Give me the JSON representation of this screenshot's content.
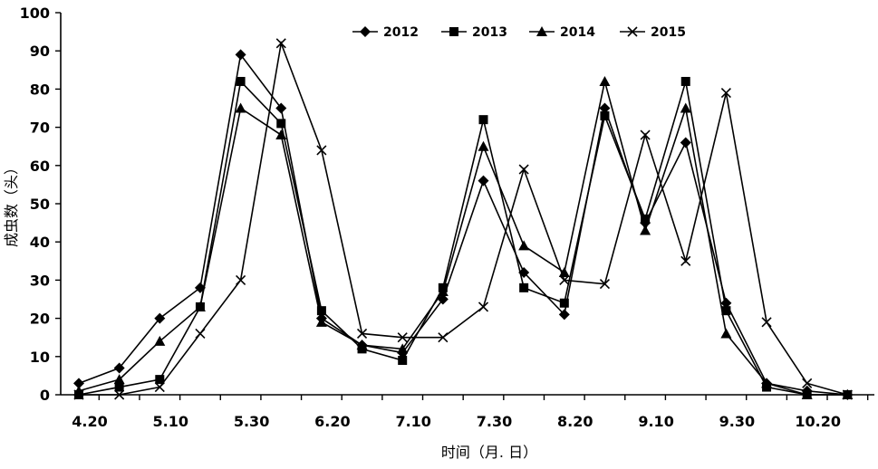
{
  "chart_data": {
    "type": "line",
    "xlabel": "时间（月. 日）",
    "ylabel": "成虫数（头）",
    "ylim": [
      0,
      100
    ],
    "yticks": [
      0,
      10,
      20,
      30,
      40,
      50,
      60,
      70,
      80,
      90,
      100
    ],
    "x_tick_labels": [
      "4.20",
      "5.10",
      "5.30",
      "6.20",
      "7.10",
      "7.30",
      "8.20",
      "9.10",
      "9.30",
      "10.20"
    ],
    "x_tick_label_positions": [
      0,
      2,
      4,
      6,
      8,
      10,
      12,
      14,
      16,
      18
    ],
    "x": [
      0,
      1,
      2,
      3,
      4,
      5,
      6,
      7,
      8,
      9,
      10,
      11,
      12,
      13,
      14,
      15,
      16,
      17,
      18,
      19
    ],
    "grid": false,
    "legend_position": "top",
    "series": [
      {
        "name": "2012",
        "marker": "diamond",
        "color": "#000000",
        "values": [
          3,
          7,
          20,
          28,
          89,
          75,
          20,
          13,
          11,
          25,
          56,
          32,
          21,
          75,
          45,
          66,
          24,
          3,
          1,
          0
        ]
      },
      {
        "name": "2013",
        "marker": "square",
        "color": "#000000",
        "values": [
          0,
          2,
          4,
          23,
          82,
          71,
          22,
          12,
          9,
          28,
          72,
          28,
          24,
          73,
          46,
          82,
          22,
          2,
          0,
          0
        ]
      },
      {
        "name": "2014",
        "marker": "triangle",
        "color": "#000000",
        "values": [
          1,
          4,
          14,
          23,
          75,
          68,
          19,
          13,
          12,
          27,
          65,
          39,
          32,
          82,
          43,
          75,
          16,
          3,
          0,
          0
        ]
      },
      {
        "name": "2015",
        "marker": "x",
        "color": "#000000",
        "values": [
          0,
          0,
          2,
          16,
          30,
          92,
          64,
          16,
          15,
          15,
          23,
          59,
          30,
          29,
          68,
          35,
          79,
          19,
          3,
          0
        ]
      }
    ]
  }
}
